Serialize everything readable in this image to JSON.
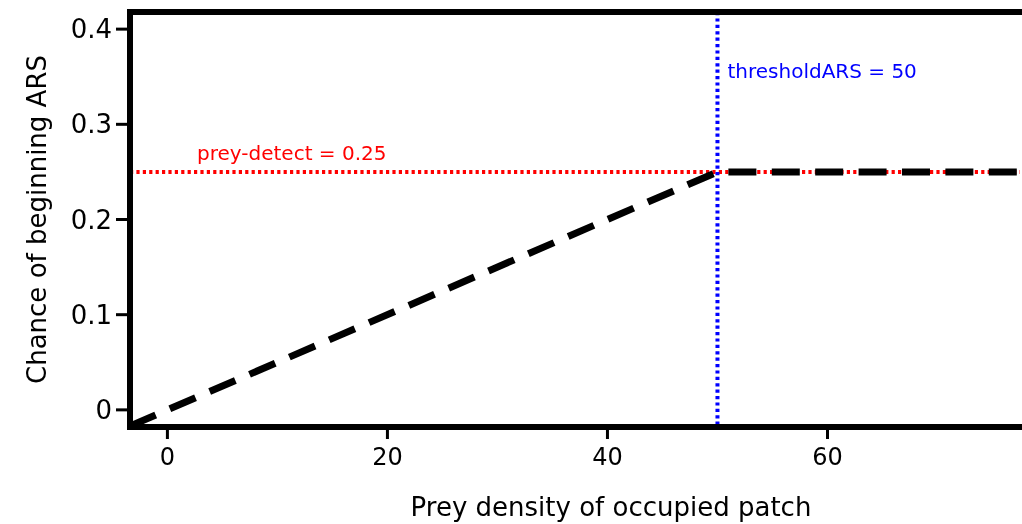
{
  "chart_data": {
    "type": "line",
    "xlabel": "Prey density of occupied patch",
    "ylabel": "Chance of beginning ARS",
    "series": [
      {
        "color": "#000000",
        "x": [
          -3.4,
          50,
          77.5
        ],
        "values": [
          -0.017,
          0.25,
          0.25
        ],
        "line_style": "dashed"
      }
    ],
    "xlim": [
      -3.4,
      77.5
    ],
    "xticks": [
      0,
      20,
      40,
      60
    ],
    "ylim": [
      -0.018,
      0.418
    ],
    "yticks": [
      0,
      0.1,
      0.2,
      0.3,
      0.4
    ],
    "ref_lines": [
      {
        "axis": "y",
        "value": 0.25,
        "label": "prey-detect = 0.25",
        "color": "#ff0000",
        "line_style": "dotted"
      },
      {
        "axis": "x",
        "value": 50,
        "label": "thresholdARS = 50",
        "color": "#0000ff",
        "line_style": "dotted"
      }
    ],
    "grid": false,
    "marker": "none"
  }
}
